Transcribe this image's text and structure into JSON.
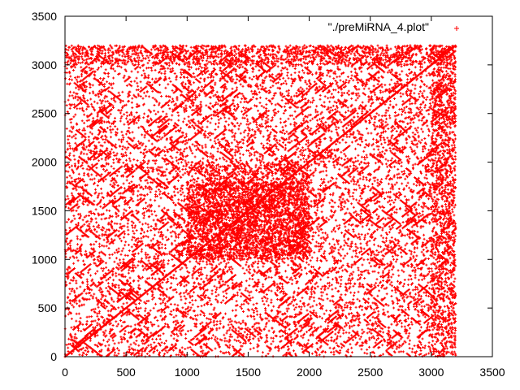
{
  "chart_data": {
    "type": "scatter",
    "title": "",
    "xlabel": "",
    "ylabel": "",
    "xlim": [
      0,
      3500
    ],
    "ylim": [
      0,
      3500
    ],
    "xticks": [
      0,
      500,
      1000,
      1500,
      2000,
      2500,
      3000,
      3500
    ],
    "yticks": [
      0,
      500,
      1000,
      1500,
      2000,
      2500,
      3000,
      3500
    ],
    "grid": false,
    "legend_position": "top-right",
    "marker": "+",
    "data_extent": [
      0,
      3200
    ],
    "series": [
      {
        "name": "\"./preMiRNA_4.plot\"",
        "color": "#ff0000",
        "diagonal_segments": [
          [
            0,
            3200
          ]
        ],
        "dense_blocks": [
          {
            "x": [
              1000,
              2000
            ],
            "y": [
              1000,
              2000
            ]
          },
          {
            "x": [
              1000,
              2000
            ],
            "y": [
              1000,
              1800
            ]
          },
          {
            "x": [
              0,
              3200
            ],
            "y": [
              3000,
              3200
            ]
          },
          {
            "x": [
              3000,
              3200
            ],
            "y": [
              0,
              3200
            ]
          }
        ]
      }
    ]
  }
}
